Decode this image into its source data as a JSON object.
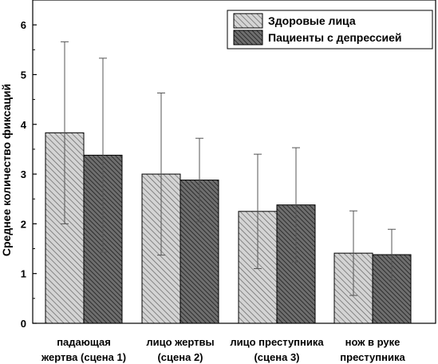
{
  "chart_data": {
    "type": "bar",
    "categories": [
      [
        "падающая",
        "жертва (сцена 1)"
      ],
      [
        "лицо жертвы",
        "(сцена 2)"
      ],
      [
        "лицо преступника",
        "(сцена 3)"
      ],
      [
        "нож в руке",
        "преступника"
      ]
    ],
    "series": [
      {
        "name": "Здоровые лица",
        "values": [
          3.83,
          3.0,
          2.25,
          1.41
        ],
        "error": [
          1.83,
          1.63,
          1.15,
          0.85
        ],
        "color": "#d4d4d4",
        "hatch": "#707070"
      },
      {
        "name": "Пациенты с депрессией",
        "values": [
          3.38,
          2.88,
          2.38,
          1.38
        ],
        "error": [
          1.95,
          0.84,
          1.15,
          0.51
        ],
        "color": "#6e6e6e",
        "hatch": "#262626"
      }
    ],
    "xlabel": "",
    "ylabel": "Среднее количество фиксаций",
    "ylim": [
      0,
      6.5
    ],
    "yticks": [
      0,
      1,
      2,
      3,
      4,
      5,
      6
    ],
    "grid": false,
    "legend_position": "top-right"
  }
}
